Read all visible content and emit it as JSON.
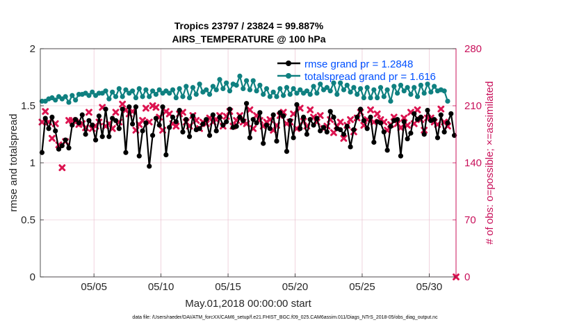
{
  "chart_data": {
    "type": "line",
    "title": "Tropics 23797 / 23824 = 99.887%",
    "subtitle": "AIRS_TEMPERATURE @ 100 hPa",
    "xlabel": "May.01,2018 00:00:00 start",
    "ylabel": "rmse and totalspread",
    "ylabel_right": "# of obs: o=possible; ×=assimilated",
    "footer": "data file: /Users/raeder/DAI/ATM_forcXX/CAM6_setup/f.e21.FHIST_BGC.f09_025.CAM6assim.011/Diags_NTrS_2018-05/obs_diag_output.nc",
    "xlim": [
      1,
      32
    ],
    "ylim": [
      0,
      2
    ],
    "ylim_right": [
      0,
      280
    ],
    "grid": true,
    "legend_position": "top-right",
    "x_ticks": [
      5,
      10,
      15,
      20,
      25,
      30
    ],
    "x_tick_labels": [
      "05/05",
      "05/10",
      "05/15",
      "05/20",
      "05/25",
      "05/30"
    ],
    "y_ticks": [
      0,
      0.5,
      1,
      1.5,
      2
    ],
    "y_tick_labels": [
      "0",
      "0.5",
      "1",
      "1.5",
      "2"
    ],
    "y_ticks_right": [
      0,
      70,
      140,
      210,
      280
    ],
    "y_tick_labels_right": [
      "0",
      "70",
      "140",
      "210",
      "280"
    ],
    "colors": {
      "rmse": "#000000",
      "spread": "#0f8080",
      "obs": "#dc1450",
      "right_axis": "#c8105a",
      "legend_text": "#0050ff",
      "grid": "#e6b8c8"
    },
    "series": [
      {
        "name": "rmse grand pr = 1.2848",
        "axis": "left",
        "x": [
          1.125,
          1.375,
          1.625,
          1.875,
          2.125,
          2.375,
          2.625,
          2.875,
          3.125,
          3.375,
          3.625,
          3.875,
          4.125,
          4.375,
          4.625,
          4.875,
          5.125,
          5.375,
          5.625,
          5.875,
          6.125,
          6.375,
          6.625,
          6.875,
          7.125,
          7.375,
          7.625,
          7.875,
          8.125,
          8.375,
          8.625,
          8.875,
          9.125,
          9.375,
          9.625,
          9.875,
          10.125,
          10.375,
          10.625,
          10.875,
          11.125,
          11.375,
          11.625,
          11.875,
          12.125,
          12.375,
          12.625,
          12.875,
          13.125,
          13.375,
          13.625,
          13.875,
          14.125,
          14.375,
          14.625,
          14.875,
          15.125,
          15.375,
          15.625,
          15.875,
          16.125,
          16.375,
          16.625,
          16.875,
          17.125,
          17.375,
          17.625,
          17.875,
          18.125,
          18.375,
          18.625,
          18.875,
          19.125,
          19.375,
          19.625,
          19.875,
          20.125,
          20.375,
          20.625,
          20.875,
          21.125,
          21.375,
          21.625,
          21.875,
          22.125,
          22.375,
          22.625,
          22.875,
          23.125,
          23.375,
          23.625,
          23.875,
          24.125,
          24.375,
          24.625,
          24.875,
          25.125,
          25.375,
          25.625,
          25.875,
          26.125,
          26.375,
          26.625,
          26.875,
          27.125,
          27.375,
          27.625,
          27.875,
          28.125,
          28.375,
          28.625,
          28.875,
          29.125,
          29.375,
          29.625,
          29.875,
          30.125,
          30.375,
          30.625,
          30.875,
          31.125,
          31.375,
          31.625,
          31.875
        ],
        "values": [
          1.09,
          1.39,
          1.3,
          1.4,
          1.28,
          1.12,
          1.15,
          1.2,
          1.13,
          1.33,
          1.38,
          1.35,
          1.42,
          1.25,
          1.37,
          1.33,
          1.2,
          1.41,
          1.23,
          1.47,
          1.23,
          1.39,
          1.37,
          1.3,
          1.47,
          1.09,
          1.49,
          1.34,
          1.49,
          1.06,
          1.28,
          1.35,
          0.97,
          1.24,
          1.39,
          1.33,
          1.49,
          1.07,
          1.31,
          1.4,
          1.36,
          1.46,
          1.27,
          1.38,
          1.23,
          1.41,
          1.29,
          1.3,
          1.34,
          1.38,
          1.24,
          1.42,
          1.28,
          1.4,
          1.33,
          1.36,
          1.47,
          1.31,
          1.32,
          1.4,
          1.37,
          1.52,
          1.22,
          1.38,
          1.35,
          1.44,
          1.17,
          1.33,
          1.3,
          1.42,
          1.19,
          1.44,
          1.41,
          1.1,
          1.37,
          1.22,
          1.51,
          1.3,
          1.4,
          1.25,
          1.38,
          1.33,
          1.39,
          1.28,
          1.31,
          1.27,
          1.45,
          1.4,
          1.3,
          1.29,
          1.25,
          1.32,
          1.14,
          1.29,
          1.4,
          1.47,
          1.37,
          1.3,
          1.4,
          1.18,
          1.36,
          1.35,
          1.27,
          1.11,
          1.32,
          1.37,
          1.38,
          1.06,
          1.36,
          1.21,
          1.26,
          1.43,
          1.38,
          1.4,
          1.25,
          1.46,
          1.37,
          1.38,
          1.22,
          1.42,
          1.27,
          1.35,
          1.43,
          1.24
        ],
        "x_from": 1.125,
        "x_step": 0.25
      },
      {
        "name": "totalspread grand pr = 1.616",
        "axis": "left",
        "values": [
          1.54,
          1.54,
          1.56,
          1.57,
          1.55,
          1.58,
          1.56,
          1.58,
          1.53,
          1.59,
          1.55,
          1.6,
          1.6,
          1.61,
          1.59,
          1.62,
          1.59,
          1.61,
          1.61,
          1.63,
          1.56,
          1.62,
          1.58,
          1.65,
          1.58,
          1.64,
          1.61,
          1.63,
          1.57,
          1.65,
          1.58,
          1.64,
          1.58,
          1.63,
          1.6,
          1.64,
          1.61,
          1.63,
          1.61,
          1.64,
          1.57,
          1.65,
          1.58,
          1.67,
          1.57,
          1.66,
          1.6,
          1.69,
          1.62,
          1.64,
          1.6,
          1.67,
          1.64,
          1.73,
          1.65,
          1.7,
          1.63,
          1.69,
          1.68,
          1.76,
          1.65,
          1.72,
          1.64,
          1.72,
          1.63,
          1.68,
          1.6,
          1.65,
          1.58,
          1.62,
          1.58,
          1.65,
          1.59,
          1.66,
          1.6,
          1.65,
          1.61,
          1.64,
          1.61,
          1.63,
          1.6,
          1.67,
          1.61,
          1.69,
          1.64,
          1.66,
          1.63,
          1.7,
          1.6,
          1.7,
          1.64,
          1.68,
          1.62,
          1.66,
          1.6,
          1.65,
          1.57,
          1.66,
          1.57,
          1.64,
          1.57,
          1.66,
          1.58,
          1.64,
          1.54,
          1.67,
          1.61,
          1.68,
          1.63,
          1.66,
          1.6,
          1.66,
          1.58,
          1.68,
          1.61,
          1.69,
          1.62,
          1.67,
          1.63,
          1.64,
          1.63,
          1.54
        ],
        "x_from": 1.125,
        "x_step": 0.25
      },
      {
        "name": "observations assimilated",
        "axis": "right",
        "values": [
          190,
          203,
          190,
          170,
          188,
          162,
          134,
          166,
          192,
          192,
          190,
          187,
          188,
          183,
          202,
          182,
          185,
          190,
          208,
          185,
          188,
          182,
          202,
          190,
          212,
          205,
          200,
          203,
          180,
          187,
          192,
          207,
          190,
          210,
          208,
          196,
          180,
          203,
          200,
          188,
          185,
          200,
          202,
          190,
          185,
          198,
          192,
          182,
          190,
          188,
          195,
          190,
          193,
          198,
          185,
          197,
          203,
          185,
          192,
          198,
          190,
          188,
          205,
          182,
          198,
          192,
          185,
          190,
          193,
          180,
          186,
          198,
          202,
          188,
          190,
          200,
          182,
          207,
          191,
          185,
          205,
          196,
          190,
          198,
          182,
          185,
          193,
          177,
          185,
          190,
          170,
          186,
          193,
          178,
          195,
          202,
          186,
          193,
          205,
          190,
          200,
          193,
          190,
          180,
          187,
          196,
          188,
          183,
          195,
          186,
          202,
          188,
          205,
          193,
          180,
          195,
          195,
          190,
          187,
          206,
          190,
          185
        ],
        "x_from": 1.125,
        "x_step": 0.25
      },
      {
        "name": "observations possible",
        "axis": "right",
        "values": [
          0
        ],
        "x": [
          32
        ]
      }
    ]
  }
}
